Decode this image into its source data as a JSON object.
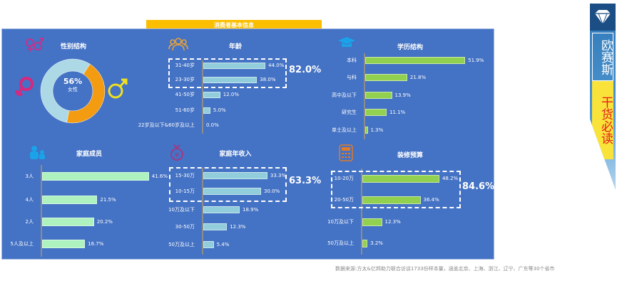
{
  "header": {
    "title": "消费者基本信息"
  },
  "banner": {
    "brand": "欧赛斯",
    "slogan": "干货必读"
  },
  "source": "数据来源:方太&亿邦助力联合访谈1733份样本量，涵盖北京、上海、浙江、辽宁、广东等30个省市",
  "colors": {
    "panel": "#4472c4",
    "header": "#fcbf00",
    "female": "#add8e6",
    "male": "#f39c12",
    "age_bar": "#92cddc",
    "edu_bar": "#92d050",
    "family_bar": "#aef2c0",
    "income_bar": "#92cddc",
    "budget_bar": "#92d050"
  },
  "chart_data": [
    {
      "id": "gender",
      "type": "pie",
      "title": "性别结构",
      "center_value": "56%",
      "center_label": "女性",
      "slices": [
        {
          "label": "女性",
          "value": 56
        },
        {
          "label": "男性",
          "value": 44
        }
      ]
    },
    {
      "id": "age",
      "type": "bar",
      "title": "年龄",
      "categories": [
        "31-40岁",
        "23-30岁",
        "41-50岁",
        "51-60岁",
        "22岁及以下&60岁及以上"
      ],
      "values": [
        44.0,
        38.0,
        12.0,
        5.0,
        0.0
      ],
      "labels": [
        "44.0%",
        "38.0%",
        "12.0%",
        "5.0%",
        "0.0%"
      ],
      "highlight": {
        "count": 2,
        "total": "82.0%"
      }
    },
    {
      "id": "education",
      "type": "bar",
      "title": "学历结构",
      "categories": [
        "本科",
        "与科",
        "高中及以下",
        "研究生",
        "单士及以上"
      ],
      "values": [
        51.9,
        21.8,
        13.9,
        11.1,
        1.3
      ],
      "labels": [
        "51.9%",
        "21.8%",
        "13.9%",
        "11.1%",
        "1.3%"
      ]
    },
    {
      "id": "family",
      "type": "bar",
      "title": "家庭成员",
      "categories": [
        "3人",
        "4人",
        "2人",
        "5人及以上"
      ],
      "values": [
        41.6,
        21.5,
        20.2,
        16.7
      ],
      "labels": [
        "41.6%",
        "21.5%",
        "20.2%",
        "16.7%"
      ]
    },
    {
      "id": "income",
      "type": "bar",
      "title": "家庭年收入",
      "categories": [
        "15-30万",
        "10-15万",
        "10万及以下",
        "30-50万",
        "50万及以上"
      ],
      "values": [
        33.3,
        30.0,
        18.9,
        12.3,
        5.4
      ],
      "labels": [
        "33.3%",
        "30.0%",
        "18.9%",
        "12.3%",
        "5.4%"
      ],
      "highlight": {
        "count": 2,
        "total": "63.3%"
      }
    },
    {
      "id": "budget",
      "type": "bar",
      "title": "装修预算",
      "categories": [
        "10-20万",
        "20-50万",
        "10万及以下",
        "50万及以上"
      ],
      "values": [
        48.2,
        36.4,
        12.3,
        3.2
      ],
      "labels": [
        "48.2%",
        "36.4%",
        "12.3%",
        "3.2%"
      ],
      "highlight": {
        "count": 2,
        "total": "84.6%"
      }
    }
  ]
}
